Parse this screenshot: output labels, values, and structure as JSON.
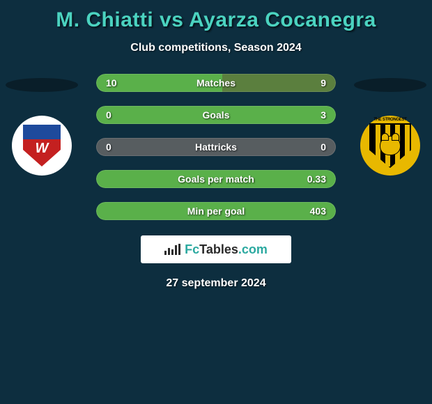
{
  "title": "M. Chiatti vs Ayarza Cocanegra",
  "subtitle": "Club competitions, Season 2024",
  "date": "27 september 2024",
  "brand": "FcTables.com",
  "colors": {
    "bg": "#0d2e3f",
    "accent": "#4bd3c0",
    "bar_left_fill": "#5ab04a",
    "bar_right_fill": "#5ab04a",
    "bar_neutral": "#555b5e",
    "bar_empty": "#09202c"
  },
  "stats": [
    {
      "label": "Matches",
      "left_value": "10",
      "right_value": "9",
      "left_fill_pct": 52.6,
      "right_fill_pct": 47.4,
      "left_color": "#5ab04a",
      "right_color": "#5b7f3e",
      "bg_color": "#09202c"
    },
    {
      "label": "Goals",
      "left_value": "0",
      "right_value": "3",
      "left_fill_pct": 0,
      "right_fill_pct": 100,
      "left_color": "#5ab04a",
      "right_color": "#5ab04a",
      "bg_color": "#09202c"
    },
    {
      "label": "Hattricks",
      "left_value": "0",
      "right_value": "0",
      "left_fill_pct": 0,
      "right_fill_pct": 0,
      "left_color": "#5ab04a",
      "right_color": "#5ab04a",
      "bg_color": "#575d60"
    },
    {
      "label": "Goals per match",
      "left_value": "",
      "right_value": "0.33",
      "left_fill_pct": 0,
      "right_fill_pct": 100,
      "left_color": "#5ab04a",
      "right_color": "#5ab04a",
      "bg_color": "#09202c"
    },
    {
      "label": "Min per goal",
      "left_value": "",
      "right_value": "403",
      "left_fill_pct": 0,
      "right_fill_pct": 100,
      "left_color": "#5ab04a",
      "right_color": "#5ab04a",
      "bg_color": "#09202c"
    }
  ],
  "right_badge_text": "THE STRONGEST"
}
